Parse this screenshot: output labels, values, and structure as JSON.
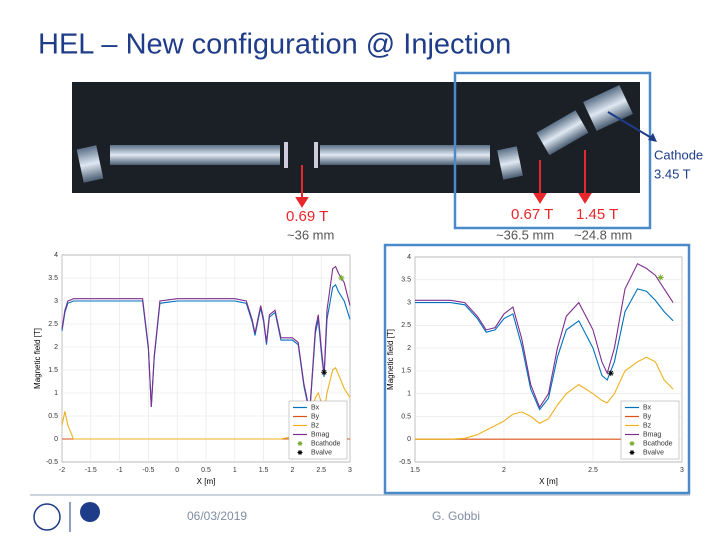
{
  "title": "HEL – New configuration @ Injection",
  "annotations": {
    "cathode": "Cathode",
    "cathode_field": "3.45 T",
    "field_1": "0.69 T",
    "dist_1": "~36 mm",
    "field_2": "0.67 T",
    "field_3": "1.45 T",
    "dist_2": "~36.5 mm",
    "dist_3": "~24.8 mm"
  },
  "footer": {
    "date": "06/03/2019",
    "author": "G. Gobbi"
  },
  "chart_data": [
    {
      "type": "line",
      "xlabel": "X [m]",
      "ylabel": "Magnetic field [T]",
      "grid": true,
      "xlim": [
        -2,
        3
      ],
      "xticks": [
        -2,
        -1.5,
        -1,
        -0.5,
        0,
        0.5,
        1,
        1.5,
        2,
        2.5,
        3
      ],
      "ylim": [
        -0.5,
        4
      ],
      "yticks": [
        -0.5,
        0,
        0.5,
        1,
        1.5,
        2,
        2.5,
        3,
        3.5,
        4
      ],
      "legend": "lower right",
      "series": [
        {
          "name": "Bx",
          "color": "#0072bd",
          "x": [
            -2,
            -1.95,
            -1.9,
            -1.8,
            -1.5,
            -1,
            -0.6,
            -0.5,
            -0.45,
            -0.4,
            -0.3,
            0,
            0.5,
            1,
            1.2,
            1.3,
            1.35,
            1.4,
            1.45,
            1.5,
            1.55,
            1.6,
            1.7,
            1.8,
            2,
            2.1,
            2.2,
            2.3,
            2.4,
            2.45,
            2.5,
            2.55,
            2.6,
            2.7,
            2.75,
            2.8,
            2.9,
            3
          ],
          "values": [
            2.35,
            2.75,
            2.95,
            3.0,
            3.0,
            3.0,
            3.0,
            1.95,
            0.7,
            1.75,
            2.95,
            3.0,
            3.0,
            3.0,
            2.95,
            2.55,
            2.25,
            2.55,
            2.85,
            2.55,
            2.05,
            2.65,
            2.75,
            2.15,
            2.15,
            2.05,
            1.15,
            0.55,
            2.3,
            2.6,
            1.9,
            1.35,
            2.6,
            3.3,
            3.35,
            3.2,
            3.0,
            2.6
          ]
        },
        {
          "name": "By",
          "color": "#d95319",
          "x": [
            -2,
            3
          ],
          "values": [
            0,
            0
          ]
        },
        {
          "name": "Bz",
          "color": "#edb120",
          "x": [
            -2,
            -1.95,
            -1.9,
            -1.8,
            -1.5,
            -1,
            -0.6,
            -0.5,
            -0.45,
            -0.4,
            -0.3,
            0,
            0.5,
            1,
            1.2,
            1.3,
            1.35,
            1.4,
            1.45,
            1.5,
            1.55,
            1.6,
            1.7,
            1.8,
            2,
            2.1,
            2.2,
            2.3,
            2.4,
            2.45,
            2.5,
            2.55,
            2.6,
            2.7,
            2.75,
            2.8,
            2.9,
            3
          ],
          "values": [
            0.3,
            0.6,
            0.3,
            0,
            0,
            0,
            0,
            0,
            0,
            0,
            0,
            0,
            0,
            0,
            0,
            0,
            0,
            0,
            0,
            0,
            0,
            0,
            0,
            0,
            0.05,
            0.1,
            0.2,
            0.5,
            0.9,
            1.0,
            0.8,
            0.6,
            1.0,
            1.5,
            1.55,
            1.4,
            1.1,
            0.9
          ]
        },
        {
          "name": "Bmag",
          "color": "#7e2f8e",
          "x": [
            -2,
            -1.95,
            -1.9,
            -1.8,
            -1.5,
            -1,
            -0.6,
            -0.5,
            -0.45,
            -0.4,
            -0.3,
            0,
            0.5,
            1,
            1.2,
            1.3,
            1.35,
            1.4,
            1.45,
            1.5,
            1.55,
            1.6,
            1.7,
            1.8,
            2,
            2.1,
            2.2,
            2.3,
            2.4,
            2.45,
            2.5,
            2.55,
            2.6,
            2.7,
            2.75,
            2.8,
            2.9,
            3
          ],
          "values": [
            2.4,
            2.8,
            3.0,
            3.05,
            3.05,
            3.05,
            3.05,
            2.0,
            0.7,
            1.8,
            3.0,
            3.05,
            3.05,
            3.05,
            3.0,
            2.6,
            2.3,
            2.6,
            2.9,
            2.6,
            2.1,
            2.7,
            2.8,
            2.2,
            2.2,
            2.1,
            1.2,
            0.6,
            2.4,
            2.7,
            2.0,
            1.4,
            2.8,
            3.7,
            3.75,
            3.6,
            3.4,
            2.9
          ]
        },
        {
          "name": "Bcathode",
          "color": "#77ac30",
          "marker": "star",
          "x": [
            2.85
          ],
          "values": [
            3.5
          ]
        },
        {
          "name": "Bvalve",
          "color": "#000000",
          "marker": "star",
          "x": [
            2.55
          ],
          "values": [
            1.45
          ]
        }
      ]
    },
    {
      "type": "line",
      "xlabel": "X [m]",
      "ylabel": "Magnetic field [T]",
      "grid": true,
      "xlim": [
        1.5,
        3
      ],
      "xticks": [
        1.5,
        2,
        2.5,
        3
      ],
      "ylim": [
        -0.5,
        4
      ],
      "yticks": [
        -0.5,
        0,
        0.5,
        1,
        1.5,
        2,
        2.5,
        3,
        3.5,
        4
      ],
      "legend": "lower right",
      "series": [
        {
          "name": "Bx",
          "color": "#0072bd",
          "x": [
            1.5,
            1.6,
            1.7,
            1.78,
            1.85,
            1.9,
            1.95,
            2.0,
            2.05,
            2.1,
            2.15,
            2.2,
            2.25,
            2.3,
            2.35,
            2.42,
            2.5,
            2.55,
            2.58,
            2.62,
            2.68,
            2.75,
            2.8,
            2.85,
            2.9,
            2.95
          ],
          "values": [
            3.0,
            3.0,
            3.0,
            2.95,
            2.65,
            2.35,
            2.4,
            2.65,
            2.75,
            2.05,
            1.1,
            0.65,
            0.9,
            1.8,
            2.4,
            2.6,
            2.0,
            1.4,
            1.3,
            1.7,
            2.8,
            3.3,
            3.25,
            3.05,
            2.8,
            2.6
          ]
        },
        {
          "name": "By",
          "color": "#d95319",
          "x": [
            1.5,
            2.95
          ],
          "values": [
            0,
            0
          ]
        },
        {
          "name": "Bz",
          "color": "#edb120",
          "x": [
            1.5,
            1.6,
            1.7,
            1.78,
            1.85,
            1.9,
            1.95,
            2.0,
            2.05,
            2.1,
            2.15,
            2.2,
            2.25,
            2.3,
            2.35,
            2.42,
            2.5,
            2.55,
            2.58,
            2.62,
            2.68,
            2.75,
            2.8,
            2.85,
            2.9,
            2.95
          ],
          "values": [
            0,
            0,
            0,
            0.02,
            0.1,
            0.2,
            0.3,
            0.4,
            0.55,
            0.6,
            0.5,
            0.35,
            0.45,
            0.75,
            1.0,
            1.2,
            1.0,
            0.85,
            0.8,
            1.0,
            1.5,
            1.7,
            1.8,
            1.7,
            1.3,
            1.1
          ]
        },
        {
          "name": "Bmag",
          "color": "#7e2f8e",
          "x": [
            1.5,
            1.6,
            1.7,
            1.78,
            1.85,
            1.9,
            1.95,
            2.0,
            2.05,
            2.1,
            2.15,
            2.2,
            2.25,
            2.3,
            2.35,
            2.42,
            2.5,
            2.55,
            2.58,
            2.62,
            2.68,
            2.75,
            2.8,
            2.85,
            2.9,
            2.95
          ],
          "values": [
            3.05,
            3.05,
            3.05,
            3.0,
            2.7,
            2.4,
            2.45,
            2.75,
            2.9,
            2.2,
            1.2,
            0.7,
            1.0,
            2.0,
            2.7,
            3.0,
            2.4,
            1.7,
            1.45,
            2.0,
            3.3,
            3.85,
            3.75,
            3.6,
            3.3,
            3.0
          ]
        },
        {
          "name": "Bcathode",
          "color": "#77ac30",
          "marker": "star",
          "x": [
            2.88
          ],
          "values": [
            3.55
          ]
        },
        {
          "name": "Bvalve",
          "color": "#000000",
          "marker": "star",
          "x": [
            2.6
          ],
          "values": [
            1.45
          ]
        }
      ]
    }
  ]
}
